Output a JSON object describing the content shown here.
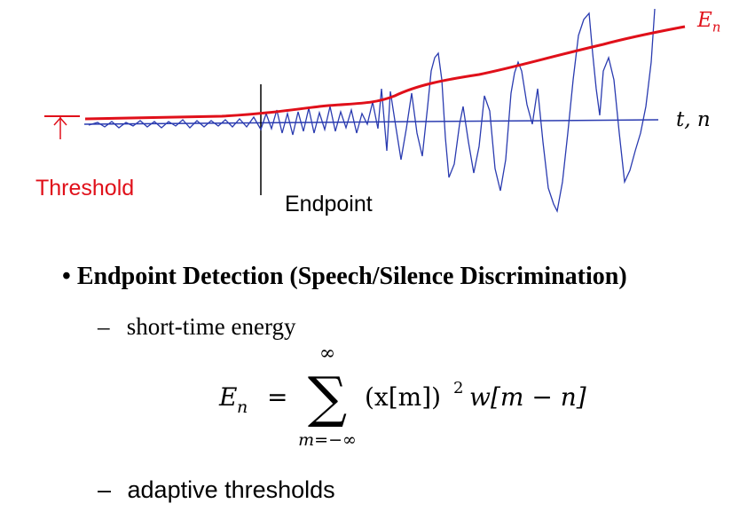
{
  "figure": {
    "threshold_label": "Threshold",
    "endpoint_label": "Endpoint",
    "axis_label": "t, n",
    "energy_label": "E",
    "energy_label_sub": "n",
    "colors": {
      "energy": "#e0101a",
      "signal": "#2a3bb0",
      "threshold": "#e0101a"
    }
  },
  "bullet": {
    "title": "Endpoint Detection (Speech/Silence Discrimination)"
  },
  "items": [
    {
      "dash": "–",
      "text": "short-time energy"
    },
    {
      "dash": "–",
      "text": "adaptive thresholds"
    }
  ],
  "formula": {
    "lhs": "E",
    "lhs_sub": "n",
    "equals": "=",
    "sigma": "∑",
    "upper": "∞",
    "lower": "m=−∞",
    "body": "(x[m])",
    "power": "2",
    "window": "w[m − n]"
  }
}
